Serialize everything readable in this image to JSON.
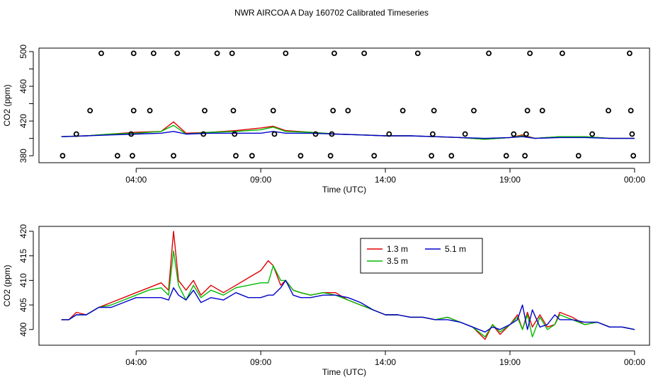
{
  "title": "NWR AIRCOA A  Day 160702  Calibrated Timeseries",
  "colors": {
    "s13": "#dd0000",
    "s35": "#00bb00",
    "s51": "#0000cc",
    "axis": "#000000"
  },
  "chart_data": [
    {
      "type": "line+scatter",
      "xlabel": "Time (UTC)",
      "ylabel": "CO2 (ppm)",
      "xlim": [
        0.1,
        24.6
      ],
      "ylim": [
        372,
        504
      ],
      "x_ticks": [
        {
          "x": 4,
          "label": "04:00"
        },
        {
          "x": 9,
          "label": "09:00"
        },
        {
          "x": 14,
          "label": "14:00"
        },
        {
          "x": 19,
          "label": "19:00"
        },
        {
          "x": 24,
          "label": "00:00"
        }
      ],
      "y_ticks": [
        {
          "y": 380,
          "label": "380"
        },
        {
          "y": 400,
          "label": ""
        },
        {
          "y": 420,
          "label": "420"
        },
        {
          "y": 440,
          "label": ""
        },
        {
          "y": 460,
          "label": "460"
        },
        {
          "y": 480,
          "label": ""
        },
        {
          "y": 500,
          "label": "500"
        }
      ],
      "lines": [
        {
          "name": "1.3 m",
          "color": "#dd0000",
          "x": [
            1,
            2,
            3,
            4,
            5,
            5.5,
            6,
            7,
            8,
            9,
            9.5,
            10,
            11,
            12,
            13,
            14,
            15,
            16,
            17,
            18,
            19,
            19.5,
            20,
            21,
            22,
            23,
            24
          ],
          "y": [
            402,
            403,
            405,
            407,
            408,
            419,
            406,
            407,
            409,
            412,
            414,
            409,
            407,
            405,
            404,
            403,
            403,
            402,
            401,
            399,
            401,
            404,
            400,
            402,
            402,
            400,
            400
          ]
        },
        {
          "name": "3.5 m",
          "color": "#00bb00",
          "x": [
            1,
            2,
            3,
            4,
            5,
            5.5,
            6,
            7,
            8,
            9,
            9.5,
            10,
            11,
            12,
            13,
            14,
            15,
            16,
            17,
            18,
            19,
            19.5,
            20,
            21,
            22,
            23,
            24
          ],
          "y": [
            402,
            403,
            405,
            406,
            408,
            415,
            405,
            407,
            408,
            410,
            413,
            408,
            407,
            405,
            404,
            403,
            403,
            402,
            401,
            399,
            401,
            403,
            400,
            402,
            402,
            400,
            400
          ]
        },
        {
          "name": "5.1 m",
          "color": "#0000cc",
          "x": [
            1,
            2,
            3,
            4,
            5,
            5.5,
            6,
            7,
            8,
            9,
            9.5,
            10,
            11,
            12,
            13,
            14,
            15,
            16,
            17,
            18,
            19,
            19.5,
            20,
            21,
            22,
            23,
            24
          ],
          "y": [
            402,
            403,
            404,
            405,
            406,
            408,
            405,
            406,
            406,
            406,
            408,
            406,
            406,
            405,
            404,
            403,
            403,
            402,
            401,
            400,
            401,
            402,
            400,
            401,
            401,
            400,
            400
          ]
        }
      ],
      "points": {
        "x": [
          1.05,
          1.6,
          2.15,
          2.6,
          3.25,
          3.8,
          3.85,
          3.9,
          3.9,
          4.55,
          4.7,
          5.5,
          5.65,
          6.7,
          6.75,
          7.25,
          7.85,
          7.9,
          7.95,
          8.0,
          8.65,
          9.5,
          9.55,
          10,
          10.6,
          11.2,
          11.8,
          11.85,
          11.9,
          11.95,
          12.5,
          13.15,
          13.55,
          14.15,
          14.7,
          15.3,
          15.85,
          15.9,
          15.95,
          16.65,
          17.2,
          17.55,
          18.15,
          18.85,
          19.15,
          19.6,
          19.65,
          19.7,
          19.8,
          20.3,
          21.1,
          21.75,
          22.3,
          22.95,
          23.8,
          23.85,
          23.9,
          23.95
        ],
        "y": [
          380,
          405,
          432,
          498,
          380,
          405,
          380,
          432,
          498,
          432,
          498,
          380,
          498,
          405,
          432,
          498,
          498,
          432,
          405,
          380,
          380,
          432,
          405,
          498,
          380,
          405,
          380,
          405,
          432,
          498,
          432,
          498,
          380,
          405,
          432,
          498,
          380,
          405,
          432,
          380,
          405,
          432,
          498,
          380,
          405,
          380,
          405,
          432,
          498,
          432,
          498,
          380,
          405,
          432,
          498,
          432,
          405,
          380
        ]
      }
    },
    {
      "type": "line",
      "xlabel": "Time (UTC)",
      "ylabel": "CO2 (ppm)",
      "xlim": [
        0.1,
        24.6
      ],
      "ylim": [
        396.8,
        421
      ],
      "x_ticks": [
        {
          "x": 4,
          "label": "04:00"
        },
        {
          "x": 9,
          "label": "09:00"
        },
        {
          "x": 14,
          "label": "14:00"
        },
        {
          "x": 19,
          "label": "19:00"
        },
        {
          "x": 24,
          "label": "00:00"
        }
      ],
      "y_ticks": [
        {
          "y": 400,
          "label": "400"
        },
        {
          "y": 405,
          "label": "405"
        },
        {
          "y": 410,
          "label": "410"
        },
        {
          "y": 415,
          "label": "415"
        },
        {
          "y": 420,
          "label": "420"
        }
      ],
      "legend": {
        "position": "top-center",
        "entries": [
          "1.3 m",
          "3.5 m",
          "5.1 m"
        ]
      },
      "series": [
        {
          "name": "1.3 m",
          "color": "#dd0000",
          "x": [
            1,
            1.3,
            1.6,
            2,
            2.5,
            3,
            3.5,
            4,
            4.5,
            5,
            5.3,
            5.5,
            5.7,
            6,
            6.3,
            6.6,
            7,
            7.5,
            8,
            8.5,
            9,
            9.3,
            9.5,
            9.8,
            10,
            10.3,
            10.6,
            11,
            11.5,
            12,
            12.5,
            13,
            13.5,
            14,
            14.5,
            15,
            15.5,
            16,
            16.5,
            17,
            17.5,
            18,
            18.3,
            18.6,
            19,
            19.3,
            19.5,
            19.7,
            19.9,
            20.2,
            20.5,
            20.8,
            21,
            21.5,
            22,
            22.5,
            23,
            23.5,
            24
          ],
          "y": [
            402,
            402,
            403.5,
            403,
            404.5,
            405.5,
            406.5,
            407.5,
            408.5,
            409.5,
            408,
            420,
            410,
            408,
            410,
            407,
            409,
            407.5,
            409,
            410.5,
            412,
            414,
            413,
            409,
            410,
            408,
            407.5,
            407,
            407.5,
            407.5,
            406,
            405,
            404,
            403,
            403,
            402.5,
            402.5,
            402,
            402.5,
            401.5,
            400.5,
            398,
            401,
            399,
            401,
            403,
            400,
            403.5,
            400.5,
            403,
            400.5,
            401,
            403.5,
            402.5,
            401,
            401.5,
            400.5,
            400.5,
            400
          ]
        },
        {
          "name": "3.5 m",
          "color": "#00bb00",
          "x": [
            1,
            1.3,
            1.6,
            2,
            2.5,
            3,
            3.5,
            4,
            4.5,
            5,
            5.3,
            5.5,
            5.7,
            6,
            6.3,
            6.6,
            7,
            7.5,
            8,
            8.5,
            9,
            9.3,
            9.5,
            9.8,
            10,
            10.3,
            10.6,
            11,
            11.5,
            12,
            12.5,
            13,
            13.5,
            14,
            14.5,
            15,
            15.5,
            16,
            16.5,
            17,
            17.5,
            18,
            18.3,
            18.6,
            19,
            19.3,
            19.5,
            19.7,
            19.9,
            20.2,
            20.5,
            20.8,
            21,
            21.5,
            22,
            22.5,
            23,
            23.5,
            24
          ],
          "y": [
            402,
            402,
            403,
            403,
            404.5,
            405,
            406,
            407,
            408,
            408.5,
            407,
            416,
            409,
            406,
            409,
            406.5,
            408,
            407,
            408.5,
            409,
            409.5,
            409.5,
            413,
            410,
            410,
            408,
            407.5,
            407,
            407.5,
            407,
            406,
            405,
            404,
            403,
            403,
            402.5,
            402.5,
            402,
            402.5,
            401.5,
            400.5,
            398.5,
            401,
            399.5,
            401,
            402.5,
            400,
            403,
            398.5,
            402.5,
            400,
            401,
            403,
            402,
            401,
            401.5,
            400.5,
            400.5,
            400
          ]
        },
        {
          "name": "5.1 m",
          "color": "#0000cc",
          "x": [
            1,
            1.3,
            1.6,
            2,
            2.5,
            3,
            3.5,
            4,
            4.5,
            5,
            5.3,
            5.5,
            5.7,
            6,
            6.3,
            6.6,
            7,
            7.5,
            8,
            8.5,
            9,
            9.3,
            9.5,
            9.8,
            10,
            10.3,
            10.6,
            11,
            11.5,
            12,
            12.5,
            13,
            13.5,
            14,
            14.5,
            15,
            15.5,
            16,
            16.5,
            17,
            17.5,
            18,
            18.3,
            18.6,
            19,
            19.3,
            19.5,
            19.7,
            19.9,
            20.2,
            20.5,
            20.8,
            21,
            21.5,
            22,
            22.5,
            23,
            23.5,
            24
          ],
          "y": [
            402,
            402,
            403,
            403,
            404.5,
            404.5,
            405.5,
            406.5,
            406.5,
            406.5,
            406,
            408.5,
            407,
            406,
            408,
            405.5,
            406.5,
            406,
            407.5,
            406.5,
            406.5,
            407,
            407,
            408.5,
            410,
            407,
            406.5,
            406.5,
            407,
            407,
            406.5,
            405.5,
            404,
            403,
            403,
            402.5,
            402.5,
            402,
            402,
            401.5,
            400.5,
            399.5,
            400.5,
            400,
            401,
            402,
            405,
            400,
            404,
            400.5,
            401,
            403,
            402,
            402,
            401.5,
            401.5,
            400.5,
            400.5,
            400
          ]
        }
      ]
    }
  ]
}
